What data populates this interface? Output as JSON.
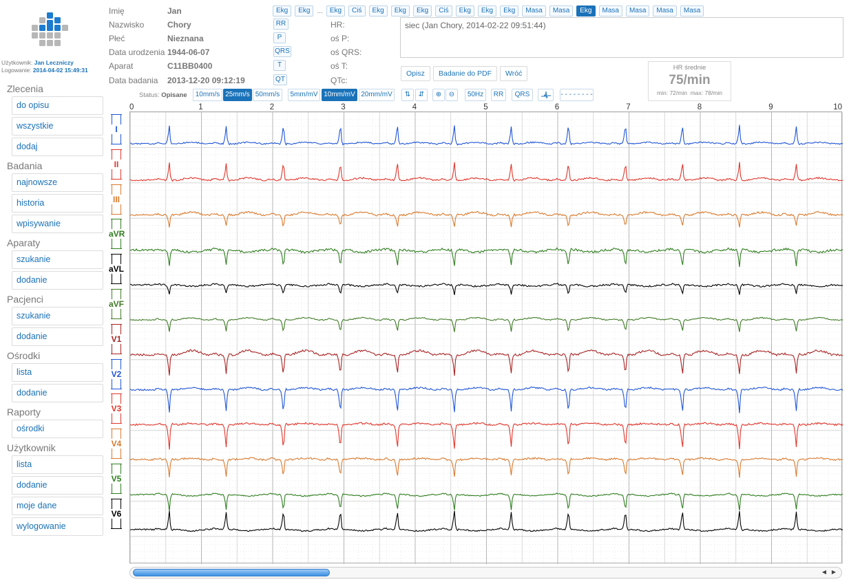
{
  "user": {
    "label": "Użytkownik:",
    "name": "Jan Leczniczy",
    "login_label": "Logowanie:",
    "login_time": "2014-04-02 15:49:31"
  },
  "sidebar": [
    {
      "title": "Zlecenia",
      "items": [
        "do opisu",
        "wszystkie",
        "dodaj"
      ]
    },
    {
      "title": "Badania",
      "items": [
        "najnowsze",
        "historia",
        "wpisywanie"
      ]
    },
    {
      "title": "Aparaty",
      "items": [
        "szukanie",
        "dodanie"
      ]
    },
    {
      "title": "Pacjenci",
      "items": [
        "szukanie",
        "dodanie"
      ]
    },
    {
      "title": "Ośrodki",
      "items": [
        "lista",
        "dodanie"
      ]
    },
    {
      "title": "Raporty",
      "items": [
        "ośrodki"
      ]
    },
    {
      "title": "Użytkownik",
      "items": [
        "lista",
        "dodanie",
        "moje dane",
        "wylogowanie"
      ]
    }
  ],
  "patient": {
    "labels": [
      "Imię",
      "Nazwisko",
      "Płeć",
      "Data urodzenia",
      "Aparat",
      "Data badania"
    ],
    "values": [
      "Jan",
      "Chory",
      "Nieznana",
      "1944-06-07",
      "C11BB0400",
      "2013-12-20 09:12:19"
    ]
  },
  "measure_buttons": [
    "RR",
    "P",
    "QRS",
    "T",
    "QT"
  ],
  "measure_labels": [
    "HR:",
    "oś P:",
    "oś QRS:",
    "oś T:",
    "QTc:"
  ],
  "top_buttons": {
    "first": [
      "Ekg",
      "Ekg"
    ],
    "dots": "...",
    "rest": [
      "Ekg",
      "Ciś",
      "Ekg",
      "Ekg",
      "Ekg",
      "Ciś",
      "Ekg",
      "Ekg",
      "Ekg",
      "Masa",
      "Masa",
      "Ekg",
      "Masa",
      "Masa",
      "Masa",
      "Masa"
    ],
    "active_index": 11
  },
  "comment": "siec (Jan Chory, 2014-02-22 09:51:44)",
  "actions": [
    "Opisz",
    "Badanie do PDF",
    "Wróć"
  ],
  "hr": {
    "title": "HR średnie",
    "value": "75/min",
    "min_label": "min:",
    "min": "72/min",
    "max_label": "max:",
    "max": "78/min"
  },
  "status": {
    "label": "Status:",
    "value": "Opisane"
  },
  "toolbar": {
    "speed": [
      "10mm/s",
      "25mm/s",
      "50mm/s"
    ],
    "gain": [
      "5mm/mV",
      "10mm/mV",
      "20mm/mV"
    ],
    "filter": "50Hz",
    "rr": "RR",
    "qrs": "QRS",
    "line": "- - - - - - - -",
    "active_speed": "25mm/s",
    "active_gain": "10mm/mV"
  },
  "time_axis": [
    "0",
    "1",
    "2",
    "3",
    "4",
    "5",
    "6",
    "7",
    "8",
    "9",
    "10"
  ],
  "leads": [
    {
      "name": "I",
      "color": "#1f55d6"
    },
    {
      "name": "II",
      "color": "#e0352b"
    },
    {
      "name": "III",
      "color": "#d97a2e"
    },
    {
      "name": "aVR",
      "color": "#2e7d1e"
    },
    {
      "name": "aVL",
      "color": "#000000"
    },
    {
      "name": "aVF",
      "color": "#3f7a25"
    },
    {
      "name": "V1",
      "color": "#a82222"
    },
    {
      "name": "V2",
      "color": "#1f55d6"
    },
    {
      "name": "V3",
      "color": "#e0352b"
    },
    {
      "name": "V4",
      "color": "#d97a2e"
    },
    {
      "name": "V5",
      "color": "#2e7d1e"
    },
    {
      "name": "V6",
      "color": "#000000"
    }
  ],
  "beat_times_s": [
    0.55,
    1.35,
    2.15,
    2.95,
    3.75,
    4.55,
    5.35,
    6.15,
    6.95,
    7.75,
    8.55,
    9.35
  ],
  "scroll": {
    "left_arrow": "◀",
    "right_arrow": "▶"
  }
}
